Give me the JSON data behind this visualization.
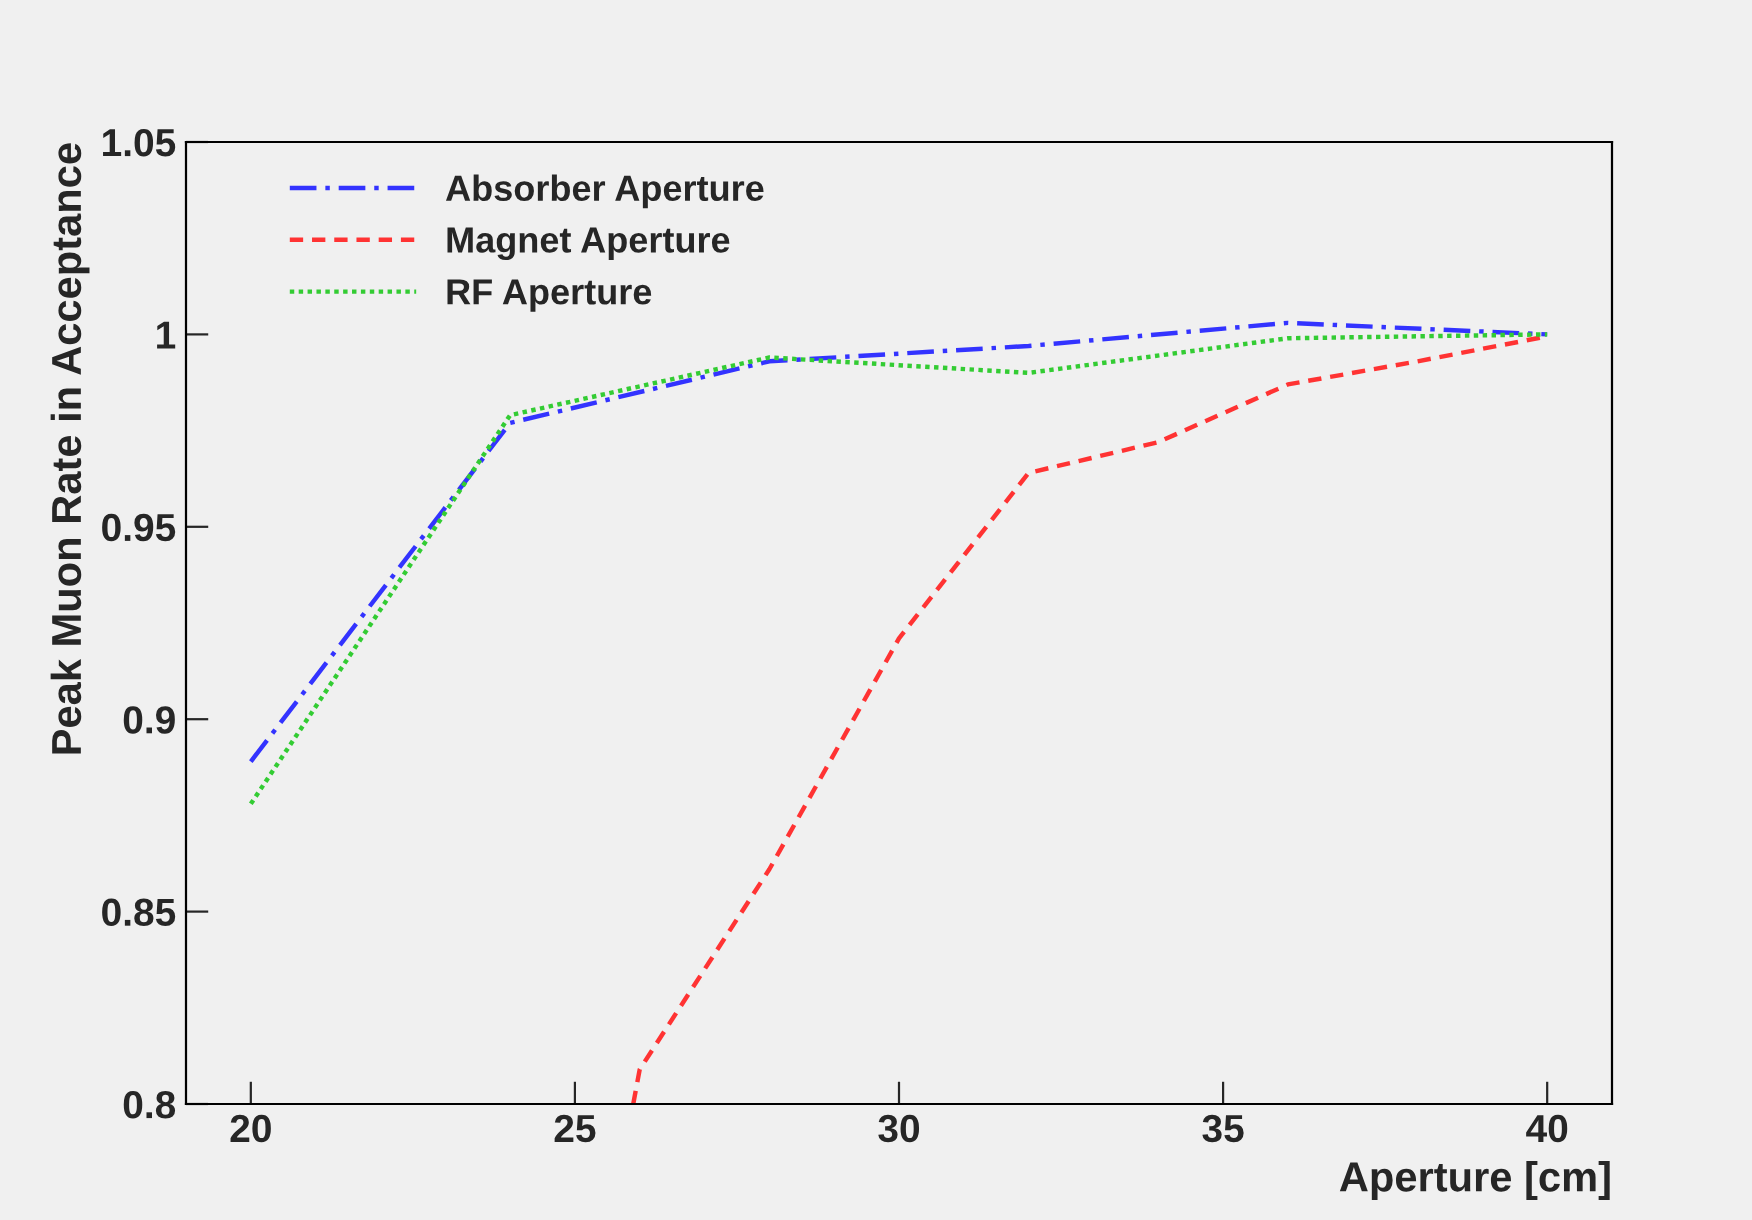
{
  "chart_data": {
    "type": "line",
    "xlabel": "Aperture [cm]",
    "ylabel": "Peak Muon Rate in Acceptance",
    "xlim": [
      19,
      41
    ],
    "xticks": [
      20,
      25,
      30,
      35,
      40
    ],
    "ylim": [
      0.8,
      1.05
    ],
    "yticks": [
      0.8,
      0.85,
      0.9,
      0.95,
      1,
      1.05
    ],
    "grid": false,
    "legend": "top left",
    "marker": "none",
    "series": [
      {
        "name": "Absorber Aperture",
        "color": "#3333ff",
        "line_style": "dashdot",
        "x": [
          20,
          24,
          28,
          32,
          36,
          40
        ],
        "values": [
          0.889,
          0.977,
          0.993,
          0.997,
          1.003,
          1.0
        ]
      },
      {
        "name": "Magnet Aperture",
        "color": "#ff3333",
        "line_style": "dashed",
        "x": [
          25.9,
          26,
          28,
          30,
          32,
          34,
          36,
          38,
          40
        ],
        "values": [
          0.8,
          0.809,
          0.861,
          0.921,
          0.964,
          0.972,
          0.987,
          0.993,
          0.9995
        ]
      },
      {
        "name": "RF Aperture",
        "color": "#33cc33",
        "line_style": "dotted",
        "x": [
          20,
          24,
          28,
          32,
          36,
          40
        ],
        "values": [
          0.878,
          0.979,
          0.994,
          0.99,
          0.999,
          1.0
        ]
      }
    ]
  }
}
